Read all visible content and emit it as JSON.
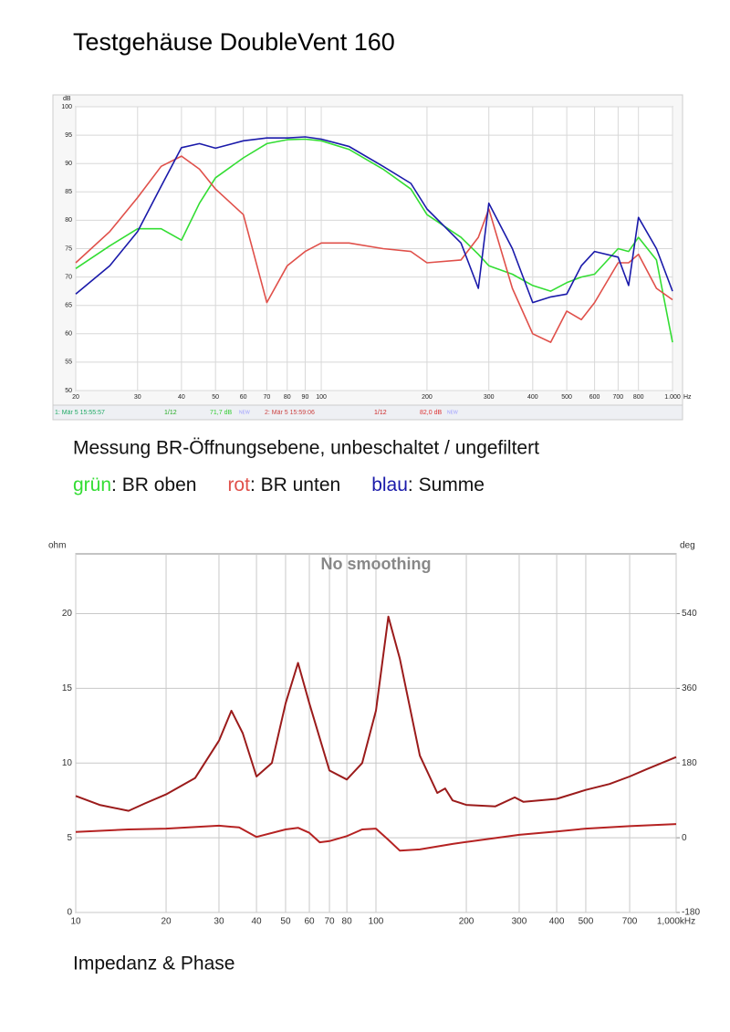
{
  "title": "Testgehäuse DoubleVent 160",
  "caption_1": "Messung BR-Öffnungsebene, unbeschaltet / ungefiltert",
  "key_separator": ": ",
  "caption_2": "Impedanz & Phase",
  "chart_data": [
    {
      "type": "line",
      "log_x": true,
      "grid": true,
      "x_unit": "Hz",
      "y_unit": "dB",
      "xlim": [
        20,
        1000
      ],
      "ylim": [
        50,
        100
      ],
      "xticks": [
        20,
        30,
        40,
        50,
        60,
        70,
        80,
        90,
        100,
        200,
        300,
        400,
        500,
        600,
        700,
        800,
        {
          "value": 1000,
          "label": "1.000"
        }
      ],
      "yticks": [
        50,
        55,
        60,
        65,
        70,
        75,
        80,
        85,
        90,
        95,
        100
      ],
      "legend_entries": [
        "1: Mär 5 15:55:57",
        "1/12",
        "71,7 dB",
        "NEW",
        "2: Mär 5 15:59:06",
        "1/12",
        "82,0 dB",
        "NEW"
      ],
      "x": [
        20,
        25,
        30,
        35,
        40,
        45,
        50,
        60,
        70,
        80,
        90,
        100,
        120,
        150,
        180,
        200,
        250,
        280,
        300,
        350,
        400,
        450,
        500,
        550,
        600,
        700,
        750,
        800,
        900,
        1000
      ],
      "series": [
        {
          "name": "BR oben",
          "color_word": "grün",
          "color": "#33dd33",
          "values": [
            71.5,
            75.5,
            78.5,
            78.5,
            76.5,
            83,
            87.5,
            91,
            93.5,
            94.2,
            94.3,
            94,
            92.5,
            89,
            85.5,
            81,
            77,
            74,
            72,
            70.5,
            68.5,
            67.5,
            69,
            70,
            70.5,
            75,
            74.5,
            77,
            73,
            58.5
          ]
        },
        {
          "name": "BR unten",
          "color_word": "rot",
          "color": "#e0504a",
          "values": [
            72.5,
            78,
            84,
            89.5,
            91.3,
            89,
            85.5,
            81,
            65.5,
            72,
            74.5,
            76,
            76,
            75,
            74.5,
            72.5,
            73,
            77,
            82,
            68,
            60,
            58.5,
            64,
            62.5,
            65.5,
            72.5,
            72.5,
            74,
            68,
            66
          ]
        },
        {
          "name": "Summe",
          "color_word": "blau",
          "color": "#1a1aaa",
          "values": [
            67,
            72,
            78,
            86,
            92.8,
            93.5,
            92.7,
            94,
            94.5,
            94.5,
            94.7,
            94.3,
            93,
            89.5,
            86.5,
            82,
            76,
            68,
            83,
            75,
            65.5,
            66.5,
            67,
            72,
            74.5,
            73.5,
            68.5,
            80.5,
            75,
            67.5
          ]
        }
      ]
    },
    {
      "type": "line",
      "log_x": true,
      "grid": true,
      "title": "No smoothing",
      "y_unit": "ohm",
      "y2_unit": "deg",
      "xlim": [
        10,
        1000
      ],
      "ylim": [
        0,
        24
      ],
      "y2lim": [
        -180,
        684
      ],
      "xticks": [
        10,
        20,
        30,
        40,
        50,
        60,
        70,
        80,
        100,
        200,
        300,
        400,
        500,
        700,
        {
          "value": 1000,
          "label": "1,000kHz"
        }
      ],
      "yticks": [
        0,
        5,
        10,
        15,
        20
      ],
      "y2ticks": [
        -180,
        0,
        180,
        360,
        540
      ],
      "series": [
        {
          "color": "#9b1b1b",
          "x": [
            10,
            12,
            15,
            17,
            20,
            25,
            30,
            33,
            36,
            40,
            45,
            50,
            55,
            60,
            70,
            80,
            90,
            100,
            110,
            120,
            140,
            160,
            170,
            180,
            200,
            250,
            290,
            310,
            400,
            500,
            600,
            700,
            800,
            1000
          ],
          "values": [
            7.8,
            7.2,
            6.8,
            7.3,
            7.9,
            9,
            11.5,
            13.5,
            12,
            9.1,
            10,
            14,
            16.7,
            14,
            9.5,
            8.9,
            10,
            13.5,
            19.8,
            17,
            10.5,
            8,
            8.3,
            7.5,
            7.2,
            7.1,
            7.7,
            7.4,
            7.6,
            8.2,
            8.6,
            9.1,
            9.6,
            10.4
          ]
        },
        {
          "color": "#b52222",
          "axis": "y2",
          "x": [
            10,
            15,
            20,
            30,
            35,
            40,
            50,
            55,
            60,
            65,
            70,
            80,
            90,
            100,
            110,
            120,
            140,
            180,
            200,
            300,
            400,
            500,
            700,
            1000
          ],
          "values": [
            14,
            20,
            22,
            29,
            25,
            2,
            20,
            24,
            12,
            -11,
            -8,
            4,
            20,
            22,
            -5,
            -31,
            -28,
            -15,
            -10,
            7,
            15,
            22,
            28,
            33
          ]
        }
      ]
    }
  ]
}
